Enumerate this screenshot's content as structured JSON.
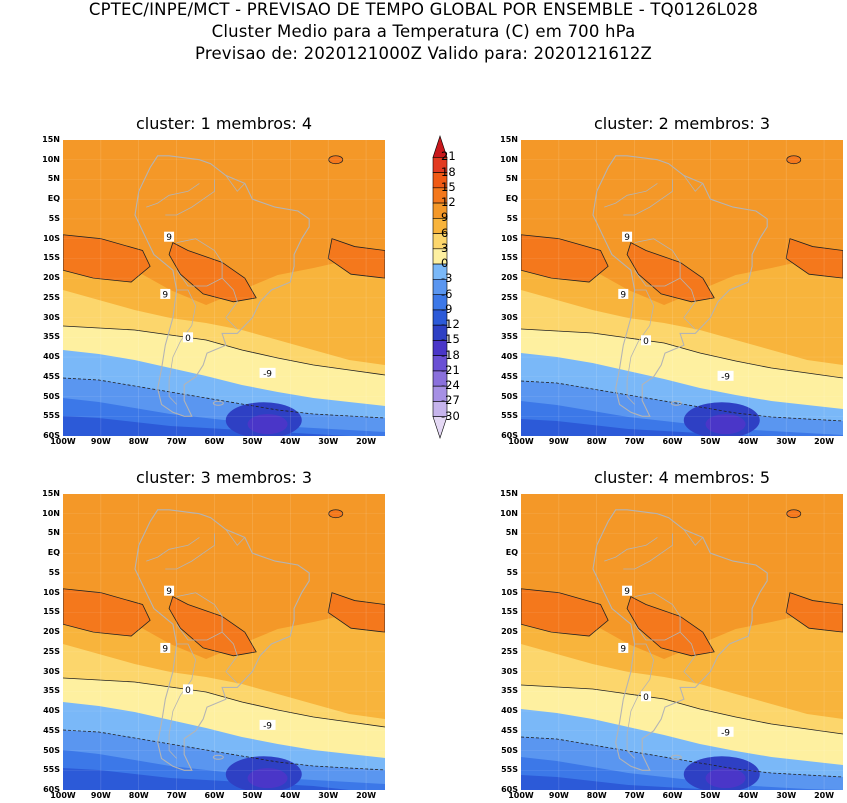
{
  "header": {
    "line1": "CPTEC/INPE/MCT - PREVISAO DE TEMPO GLOBAL POR ENSEMBLE - TQ0126L028",
    "line2": "Cluster Medio para a Temperatura (C) em 700 hPa",
    "line3": "Previsao de: 2020121000Z   Valido para: 2020121612Z"
  },
  "panels": [
    {
      "title": "cluster: 1  membros: 4"
    },
    {
      "title": "cluster: 2  membros: 3"
    },
    {
      "title": "cluster: 3  membros: 3"
    },
    {
      "title": "cluster: 4  membros: 5"
    }
  ],
  "lat_labels": [
    "15N",
    "10N",
    "5N",
    "EQ",
    "5S",
    "10S",
    "15S",
    "20S",
    "25S",
    "30S",
    "35S",
    "40S",
    "45S",
    "50S",
    "55S",
    "60S"
  ],
  "lon_labels": [
    "100W",
    "90W",
    "80W",
    "70W",
    "60W",
    "50W",
    "40W",
    "30W",
    "20W"
  ],
  "colorbar": {
    "labels": [
      "21",
      "18",
      "15",
      "12",
      "9",
      "6",
      "3",
      "0",
      "-3",
      "-6",
      "-9",
      "-12",
      "-15",
      "-18",
      "-21",
      "-24",
      "-27",
      "-30"
    ],
    "colors": [
      "#c8181c",
      "#e23a20",
      "#f05a14",
      "#f4781c",
      "#f49828",
      "#f8b43c",
      "#fcd66c",
      "#fef0a0",
      "#7ab8f8",
      "#5a96f0",
      "#3c78e8",
      "#2c5ad8",
      "#2e40c4",
      "#4a36c8",
      "#6a50d4",
      "#8a70dc",
      "#a690e4",
      "#c6b4ec",
      "#e4d8f4"
    ]
  },
  "contour_labels": {
    "nine": "9",
    "zero": "0",
    "minus_nine": "-9"
  }
}
